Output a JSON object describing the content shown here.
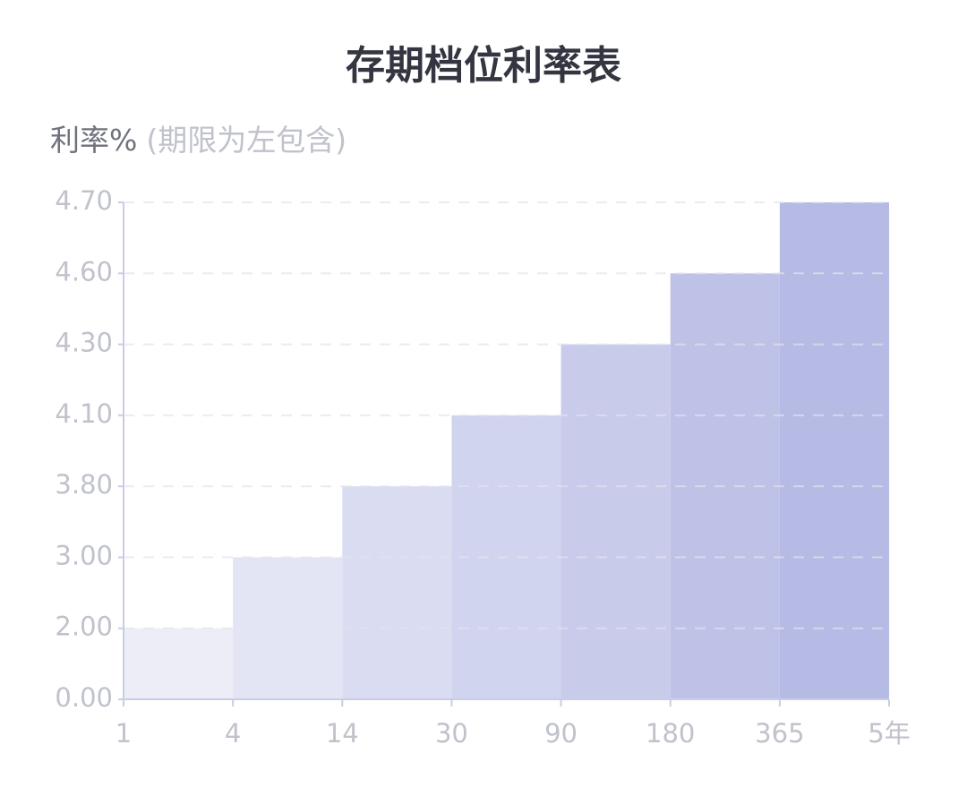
{
  "chart_data": {
    "type": "step-histogram",
    "title": "存期档位利率表",
    "y_label": "利率%",
    "y_label_note": "(期限为左包含)",
    "bins": [
      "1",
      "4",
      "14",
      "30",
      "90",
      "180",
      "365",
      "5年"
    ],
    "values": [
      2.0,
      3.0,
      3.8,
      4.1,
      4.3,
      4.6,
      4.7
    ],
    "colors": [
      "#ededf7",
      "#e4e5f4",
      "#dadcf1",
      "#d1d4ee",
      "#c8cbea",
      "#bec2e7",
      "#b5bbe4"
    ],
    "ylim": [
      0,
      4.7
    ],
    "yticks": [
      {
        "value": 0,
        "label": "0.00"
      },
      {
        "value": 2,
        "label": "2.00"
      },
      {
        "value": 3,
        "label": "3.00"
      },
      {
        "value": 3.8,
        "label": "3.80"
      },
      {
        "value": 4.1,
        "label": "4.10"
      },
      {
        "value": 4.3,
        "label": "4.30"
      },
      {
        "value": 4.6,
        "label": "4.60"
      },
      {
        "value": 4.7,
        "label": "4.70"
      }
    ],
    "grid": true
  }
}
